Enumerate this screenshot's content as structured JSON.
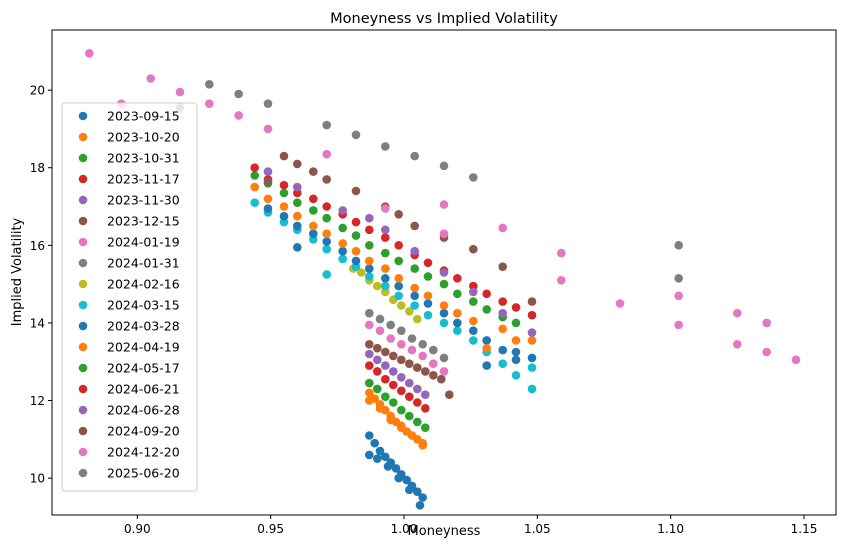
{
  "chart_data": {
    "type": "scatter",
    "title": "Moneyness vs Implied Volatility",
    "xlabel": "Moneyness",
    "ylabel": "Implied Volatility",
    "xlim": [
      0.868,
      1.162
    ],
    "ylim": [
      9.05,
      21.55
    ],
    "xticks": [
      0.9,
      0.95,
      1.0,
      1.05,
      1.1,
      1.15
    ],
    "xtick_labels": [
      "0.90",
      "0.95",
      "1.00",
      "1.05",
      "1.10",
      "1.15"
    ],
    "yticks": [
      10,
      12,
      14,
      16,
      18,
      20
    ],
    "ytick_labels": [
      "10",
      "12",
      "14",
      "16",
      "18",
      "20"
    ],
    "grid": false,
    "legend_location": "lower left",
    "series": [
      {
        "name": "2023-09-15",
        "color": "#1f77b4",
        "x": [
          0.987,
          0.989,
          0.991,
          0.993,
          0.995,
          0.997,
          0.999,
          1.001,
          1.003,
          1.005,
          1.007,
          0.987,
          0.99,
          0.994,
          0.998,
          1.002,
          1.006
        ],
        "y": [
          11.1,
          10.9,
          10.7,
          10.55,
          10.4,
          10.25,
          10.1,
          9.95,
          9.8,
          9.65,
          9.5,
          10.6,
          10.5,
          10.3,
          10.0,
          9.7,
          9.3
        ]
      },
      {
        "name": "2023-10-20",
        "color": "#ff7f0e",
        "x": [
          0.987,
          0.989,
          0.991,
          0.993,
          0.995,
          0.997,
          0.999,
          1.001,
          1.003,
          1.005,
          1.007,
          0.987,
          0.991,
          0.995,
          0.999,
          1.003,
          1.007
        ],
        "y": [
          12.2,
          12.05,
          11.9,
          11.75,
          11.6,
          11.45,
          11.35,
          11.2,
          11.1,
          11.0,
          10.9,
          12.0,
          11.8,
          11.5,
          11.3,
          11.1,
          10.85
        ]
      },
      {
        "name": "2023-10-31",
        "color": "#2ca02c",
        "x": [
          0.987,
          0.99,
          0.993,
          0.996,
          0.999,
          1.002,
          1.005,
          1.008
        ],
        "y": [
          12.45,
          12.3,
          12.1,
          11.95,
          11.75,
          11.6,
          11.45,
          11.3
        ]
      },
      {
        "name": "2023-11-17",
        "color": "#d62728",
        "x": [
          0.987,
          0.99,
          0.993,
          0.996,
          0.999,
          1.002,
          1.005,
          1.008
        ],
        "y": [
          12.9,
          12.75,
          12.55,
          12.4,
          12.25,
          12.1,
          11.95,
          11.8
        ]
      },
      {
        "name": "2023-11-30",
        "color": "#9467bd",
        "x": [
          0.987,
          0.99,
          0.993,
          0.996,
          0.999,
          1.002,
          1.005,
          1.008
        ],
        "y": [
          13.2,
          13.05,
          12.9,
          12.75,
          12.6,
          12.45,
          12.3,
          12.15
        ]
      },
      {
        "name": "2023-12-15",
        "color": "#8c564b",
        "x": [
          0.987,
          0.99,
          0.993,
          0.996,
          0.999,
          1.002,
          1.005,
          1.008,
          1.011,
          1.014,
          1.017
        ],
        "y": [
          13.45,
          13.35,
          13.25,
          13.15,
          13.05,
          12.95,
          12.85,
          12.75,
          12.65,
          12.55,
          12.15
        ]
      },
      {
        "name": "2024-01-19",
        "color": "#e377c2",
        "x": [
          0.987,
          0.991,
          0.995,
          0.999,
          1.003,
          1.007,
          1.011,
          1.015
        ],
        "y": [
          13.95,
          13.8,
          13.6,
          13.45,
          13.3,
          13.15,
          12.95,
          12.75
        ]
      },
      {
        "name": "2024-01-31",
        "color": "#7f7f7f",
        "x": [
          0.987,
          0.991,
          0.995,
          0.999,
          1.003,
          1.007,
          1.011,
          1.015
        ],
        "y": [
          14.25,
          14.1,
          13.95,
          13.8,
          13.6,
          13.45,
          13.3,
          13.1
        ]
      },
      {
        "name": "2024-02-16",
        "color": "#bcbd22",
        "x": [
          0.981,
          0.984,
          0.987,
          0.99,
          0.993,
          0.996,
          0.999,
          1.002,
          1.005
        ],
        "y": [
          15.4,
          15.3,
          15.1,
          14.95,
          14.8,
          14.6,
          14.45,
          14.3,
          14.1
        ]
      },
      {
        "name": "2024-03-15",
        "color": "#17becf",
        "x": [
          0.944,
          0.949,
          0.955,
          0.96,
          0.966,
          0.971,
          0.977,
          0.982,
          0.987,
          0.993,
          0.998,
          1.004,
          1.009,
          1.015,
          1.02,
          1.026,
          1.031,
          1.037,
          1.042,
          1.048,
          1.048,
          0.971
        ],
        "y": [
          17.1,
          16.85,
          16.6,
          16.4,
          16.15,
          15.9,
          15.65,
          15.45,
          15.2,
          14.95,
          14.7,
          14.45,
          14.2,
          14.0,
          13.8,
          13.55,
          13.25,
          12.95,
          12.65,
          12.85,
          12.3,
          15.25
        ]
      },
      {
        "name": "2024-03-28",
        "color": "#1f77b4",
        "x": [
          0.949,
          0.955,
          0.96,
          0.966,
          0.971,
          0.977,
          0.982,
          0.987,
          0.993,
          0.998,
          1.004,
          1.009,
          1.015,
          1.02,
          1.026,
          1.031,
          1.037,
          1.042,
          1.048,
          0.96,
          1.031,
          1.042
        ],
        "y": [
          16.95,
          16.75,
          16.5,
          16.3,
          16.1,
          15.85,
          15.6,
          15.4,
          15.15,
          14.95,
          14.7,
          14.5,
          14.25,
          14.0,
          13.8,
          13.55,
          13.3,
          13.05,
          13.1,
          15.95,
          12.9,
          13.25
        ]
      },
      {
        "name": "2024-04-19",
        "color": "#ff7f0e",
        "x": [
          0.944,
          0.949,
          0.955,
          0.96,
          0.966,
          0.971,
          0.977,
          0.982,
          0.987,
          0.993,
          0.998,
          1.004,
          1.009,
          1.015,
          1.02,
          1.026,
          1.031,
          1.037,
          1.042,
          1.048
        ],
        "y": [
          17.5,
          17.2,
          17.0,
          16.75,
          16.5,
          16.3,
          16.05,
          15.85,
          15.6,
          15.4,
          15.15,
          14.9,
          14.7,
          14.45,
          14.25,
          14.05,
          13.35,
          13.85,
          13.55,
          13.55
        ]
      },
      {
        "name": "2024-05-17",
        "color": "#2ca02c",
        "x": [
          0.944,
          0.949,
          0.955,
          0.96,
          0.966,
          0.971,
          0.977,
          0.982,
          0.987,
          0.993,
          0.998,
          1.004,
          1.009,
          1.015,
          1.02,
          1.026,
          1.031,
          1.037,
          1.042
        ],
        "y": [
          17.8,
          17.6,
          17.35,
          17.1,
          16.9,
          16.7,
          16.45,
          16.25,
          16.0,
          15.8,
          15.6,
          15.4,
          15.2,
          15.0,
          14.75,
          14.55,
          14.35,
          14.15,
          14.0
        ]
      },
      {
        "name": "2024-06-21",
        "color": "#d62728",
        "x": [
          0.944,
          0.949,
          0.955,
          0.96,
          0.966,
          0.971,
          0.977,
          0.982,
          0.987,
          0.993,
          0.998,
          1.004,
          1.009,
          1.015,
          1.02,
          1.026,
          1.031,
          1.037,
          1.042,
          1.048
        ],
        "y": [
          18.0,
          17.7,
          17.55,
          17.35,
          17.2,
          17.0,
          16.8,
          16.6,
          16.4,
          16.2,
          16.0,
          15.75,
          15.55,
          15.35,
          15.15,
          14.95,
          14.75,
          14.55,
          14.4,
          14.2
        ]
      },
      {
        "name": "2024-06-28",
        "color": "#9467bd",
        "x": [
          0.949,
          0.96,
          0.977,
          0.987,
          0.993,
          1.004,
          1.015,
          1.026,
          1.037,
          1.048
        ],
        "y": [
          17.9,
          17.5,
          16.9,
          16.7,
          16.4,
          15.85,
          15.3,
          14.8,
          14.25,
          13.75
        ]
      },
      {
        "name": "2024-09-20",
        "color": "#8c564b",
        "x": [
          0.949,
          0.955,
          0.96,
          0.966,
          0.971,
          0.982,
          0.993,
          0.998,
          1.004,
          1.015,
          1.026,
          1.037,
          1.048
        ],
        "y": [
          17.65,
          18.3,
          18.1,
          17.9,
          17.7,
          17.4,
          17.0,
          16.8,
          16.5,
          16.2,
          15.9,
          15.45,
          14.55
        ]
      },
      {
        "name": "2024-12-20",
        "color": "#e377c2",
        "x": [
          0.882,
          0.894,
          0.905,
          0.916,
          0.927,
          0.938,
          0.949,
          0.971,
          0.993,
          1.015,
          1.015,
          1.037,
          1.059,
          1.081,
          1.103,
          1.125,
          1.136,
          1.147,
          1.059,
          1.103,
          1.125,
          1.136
        ],
        "y": [
          20.95,
          19.65,
          20.3,
          19.95,
          19.65,
          19.35,
          19.0,
          18.35,
          16.95,
          17.05,
          16.3,
          16.45,
          15.8,
          14.5,
          14.7,
          14.25,
          14.0,
          13.05,
          15.1,
          13.95,
          13.45,
          13.25
        ]
      },
      {
        "name": "2025-06-20",
        "color": "#7f7f7f",
        "x": [
          0.916,
          0.927,
          0.938,
          0.949,
          0.971,
          0.982,
          0.993,
          1.004,
          1.015,
          1.026,
          1.103,
          1.103
        ],
        "y": [
          19.55,
          20.15,
          19.9,
          19.65,
          19.1,
          18.85,
          18.55,
          18.3,
          18.05,
          17.75,
          16.0,
          15.15
        ]
      }
    ]
  }
}
